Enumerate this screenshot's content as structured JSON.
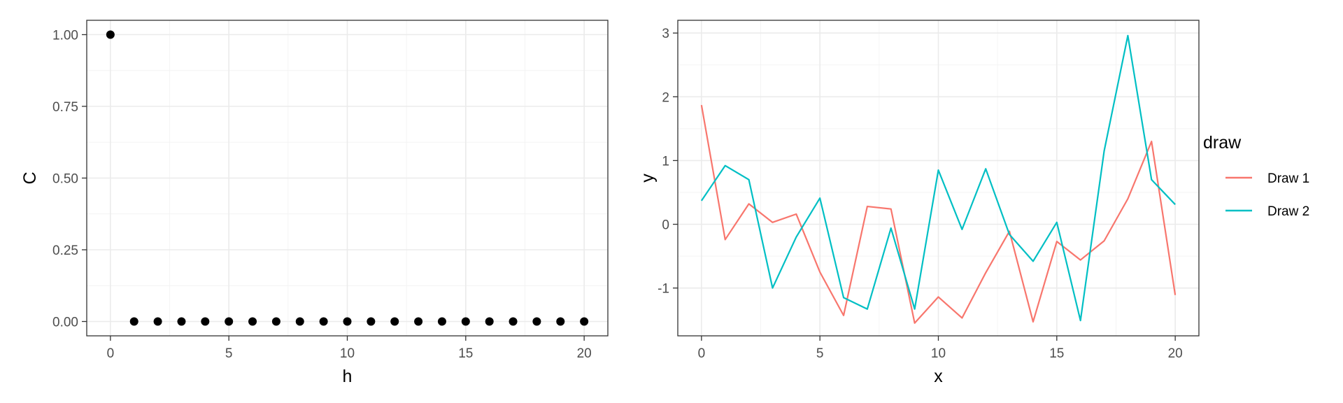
{
  "chart_data": [
    {
      "type": "scatter",
      "title": "",
      "xlabel": "h",
      "ylabel": "C",
      "xlim": [
        -1,
        21
      ],
      "ylim": [
        -0.05,
        1.05
      ],
      "xticks": [
        0,
        5,
        10,
        15,
        20
      ],
      "yticks": [
        0.0,
        0.25,
        0.5,
        0.75,
        1.0
      ],
      "ytick_labels": [
        "0.00",
        "0.25",
        "0.50",
        "0.75",
        "1.00"
      ],
      "grid": true,
      "point_color": "#000000",
      "x": [
        0,
        1,
        2,
        3,
        4,
        5,
        6,
        7,
        8,
        9,
        10,
        11,
        12,
        13,
        14,
        15,
        16,
        17,
        18,
        19,
        20
      ],
      "y": [
        1,
        0,
        0,
        0,
        0,
        0,
        0,
        0,
        0,
        0,
        0,
        0,
        0,
        0,
        0,
        0,
        0,
        0,
        0,
        0,
        0
      ]
    },
    {
      "type": "line",
      "title": "",
      "xlabel": "x",
      "ylabel": "y",
      "xlim": [
        -1,
        21
      ],
      "ylim": [
        -1.75,
        3.2
      ],
      "xticks": [
        0,
        5,
        10,
        15,
        20
      ],
      "yticks": [
        -1,
        0,
        1,
        2,
        3
      ],
      "grid": true,
      "legend_title": "draw",
      "legend_position": "right",
      "x": [
        0,
        1,
        2,
        3,
        4,
        5,
        6,
        7,
        8,
        9,
        10,
        11,
        12,
        13,
        14,
        15,
        16,
        17,
        18,
        19,
        20
      ],
      "series": [
        {
          "name": "Draw 1",
          "color": "#F8766D",
          "values": [
            1.87,
            -0.24,
            0.32,
            0.03,
            0.16,
            -0.75,
            -1.43,
            0.28,
            0.24,
            -1.55,
            -1.14,
            -1.47,
            -0.76,
            -0.11,
            -1.53,
            -0.27,
            -0.56,
            -0.26,
            0.4,
            1.3,
            -1.11
          ]
        },
        {
          "name": "Draw 2",
          "color": "#00BFC4",
          "values": [
            0.37,
            0.92,
            0.7,
            -1.0,
            -0.2,
            0.41,
            -1.15,
            -1.33,
            -0.06,
            -1.33,
            0.85,
            -0.08,
            0.87,
            -0.16,
            -0.58,
            0.03,
            -1.51,
            1.15,
            2.96,
            0.7,
            0.31
          ]
        }
      ]
    }
  ]
}
